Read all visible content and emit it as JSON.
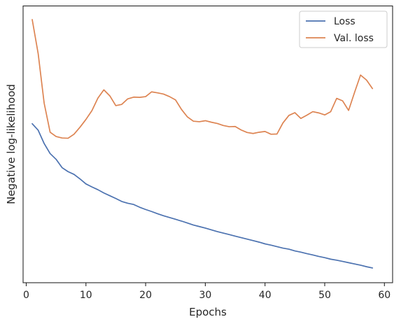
{
  "chart_data": {
    "type": "line",
    "title": "",
    "xlabel": "Epochs",
    "ylabel": "Negative log-likelihood",
    "xlim": [
      -0.9,
      61.0
    ],
    "ylim": [
      0,
      100
    ],
    "y_tick_labels_shown": false,
    "x_ticks": [
      0,
      10,
      20,
      30,
      40,
      50,
      60
    ],
    "grid": false,
    "legend_position": "top-right",
    "series": [
      {
        "name": "Loss",
        "color": "#4c72b0",
        "x": [
          1,
          2,
          3,
          4,
          5,
          6,
          7,
          8,
          9,
          10,
          11,
          12,
          13,
          14,
          15,
          16,
          17,
          18,
          19,
          20,
          21,
          22,
          23,
          24,
          25,
          26,
          27,
          28,
          29,
          30,
          31,
          32,
          33,
          34,
          35,
          36,
          37,
          38,
          39,
          40,
          41,
          42,
          43,
          44,
          45,
          46,
          47,
          48,
          49,
          50,
          51,
          52,
          53,
          54,
          55,
          56,
          57,
          58
        ],
        "values": [
          58.5,
          55.9,
          50.6,
          46.6,
          44.3,
          41.0,
          39.4,
          38.3,
          36.5,
          34.5,
          33.3,
          32.2,
          30.9,
          29.8,
          28.7,
          27.5,
          26.8,
          26.3,
          25.2,
          24.3,
          23.5,
          22.6,
          21.8,
          21.1,
          20.4,
          19.7,
          18.9,
          18.1,
          17.5,
          16.9,
          16.2,
          15.5,
          14.9,
          14.3,
          13.7,
          13.1,
          12.5,
          11.9,
          11.3,
          10.6,
          10.1,
          9.5,
          8.9,
          8.5,
          7.8,
          7.3,
          6.7,
          6.2,
          5.6,
          5.1,
          4.5,
          4.1,
          3.6,
          3.1,
          2.6,
          2.1,
          1.5,
          1.0
        ]
      },
      {
        "name": "Val. loss",
        "color": "#dd8452",
        "x": [
          1,
          2,
          3,
          4,
          5,
          6,
          7,
          8,
          9,
          10,
          11,
          12,
          13,
          14,
          15,
          16,
          17,
          18,
          19,
          20,
          21,
          22,
          23,
          24,
          25,
          26,
          27,
          28,
          29,
          30,
          31,
          32,
          33,
          34,
          35,
          36,
          37,
          38,
          39,
          40,
          41,
          42,
          43,
          44,
          45,
          46,
          47,
          48,
          49,
          50,
          51,
          52,
          53,
          54,
          55,
          56,
          57,
          58
        ],
        "values": [
          100,
          86.4,
          66.7,
          55.1,
          53.4,
          52.8,
          52.7,
          54.3,
          57.1,
          60.2,
          63.7,
          68.7,
          72.0,
          69.6,
          65.7,
          66.2,
          68.4,
          69.1,
          69.0,
          69.3,
          71.2,
          70.8,
          70.3,
          69.3,
          68.0,
          64.2,
          61.2,
          59.5,
          59.3,
          59.7,
          59.1,
          58.6,
          57.8,
          57.3,
          57.4,
          56.0,
          55.0,
          54.6,
          55.1,
          55.4,
          54.3,
          54.4,
          58.8,
          61.8,
          62.9,
          60.6,
          61.9,
          63.3,
          62.8,
          62.0,
          63.3,
          68.6,
          67.6,
          63.8,
          71.0,
          77.9,
          75.9,
          72.5
        ]
      }
    ]
  }
}
